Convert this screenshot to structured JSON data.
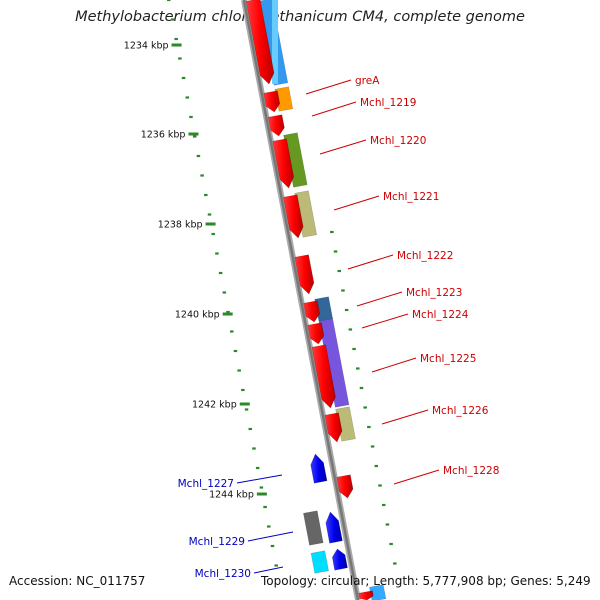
{
  "title": "Methylobacterium chloromethanicum CM4, complete genome",
  "footer": {
    "accession": "Accession: NC_011757",
    "topology": "Topology: circular; Length: 5,777,908 bp; Genes: 5,249"
  },
  "kbp_labels": [
    "1234 kbp",
    "1236 kbp",
    "1238 kbp",
    "1240 kbp",
    "1242 kbp",
    "1244 kbp"
  ],
  "genes_forward": [
    {
      "label": "greA",
      "color": "#cc0000"
    },
    {
      "label": "Mchl_1219",
      "color": "#cc0000"
    },
    {
      "label": "Mchl_1220",
      "color": "#cc0000"
    },
    {
      "label": "Mchl_1221",
      "color": "#cc0000"
    },
    {
      "label": "Mchl_1222",
      "color": "#cc0000"
    },
    {
      "label": "Mchl_1223",
      "color": "#cc0000"
    },
    {
      "label": "Mchl_1224",
      "color": "#cc0000"
    },
    {
      "label": "Mchl_1225",
      "color": "#cc0000"
    },
    {
      "label": "Mchl_1226",
      "color": "#cc0000"
    },
    {
      "label": "Mchl_1228",
      "color": "#cc0000"
    }
  ],
  "genes_reverse": [
    {
      "label": "Mchl_1227",
      "color": "#0000bb"
    },
    {
      "label": "Mchl_1229",
      "color": "#0000bb"
    },
    {
      "label": "Mchl_1230",
      "color": "#0000bb"
    }
  ],
  "colors": {
    "forward_strand": "#ff0000",
    "reverse_strand": "#0000ee",
    "backbone": "#888888",
    "tick": "#2a8a2a",
    "cog_orange": "#ff9900",
    "cog_olive": "#669922",
    "cog_khaki": "#bbbb77",
    "cog_steel": "#336699",
    "cog_purple": "#7755dd",
    "cog_cyan": "#00ddff",
    "cog_gray": "#666666"
  }
}
